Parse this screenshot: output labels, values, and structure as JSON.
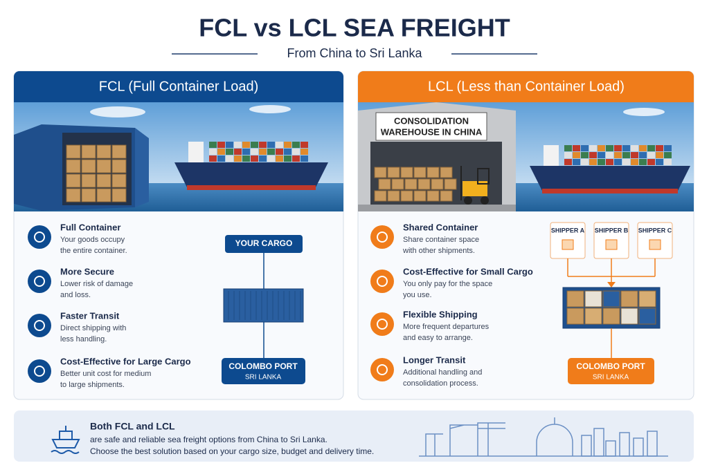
{
  "header": {
    "title": "FCL vs LCL SEA FREIGHT",
    "subtitle": "From China to Sri Lanka"
  },
  "fcl": {
    "heading": "FCL (Full Container Load)",
    "features": [
      {
        "title": "Full Container",
        "lines": [
          "Your goods occupy",
          "the entire container."
        ]
      },
      {
        "title": "More Secure",
        "lines": [
          "Lower risk of damage",
          "and loss."
        ]
      },
      {
        "title": "Faster Transit",
        "lines": [
          "Direct shipping with",
          "less handling."
        ]
      },
      {
        "title": "Cost-Effective for Large Cargo",
        "lines": [
          "Better unit cost for medium",
          "to large shipments."
        ]
      }
    ],
    "diagram": {
      "cargo": "YOUR CARGO",
      "port": "COLOMBO PORT",
      "port_sub": "SRI LANKA"
    }
  },
  "lcl": {
    "heading": "LCL (Less than Container Load)",
    "warehouse_sign": [
      "CONSOLIDATION",
      "WAREHOUSE IN CHINA"
    ],
    "features": [
      {
        "title": "Shared Container",
        "lines": [
          "Share container space",
          "with other shipments."
        ]
      },
      {
        "title": "Cost-Effective for Small Cargo",
        "lines": [
          "You only pay for the space",
          "you use."
        ]
      },
      {
        "title": "Flexible Shipping",
        "lines": [
          "More frequent departures",
          "and easy to arrange."
        ]
      },
      {
        "title": "Longer Transit",
        "lines": [
          "Additional handling and",
          "consolidation process."
        ]
      }
    ],
    "diagram": {
      "shippers": [
        "SHIPPER A",
        "SHIPPER B",
        "SHIPPER C"
      ],
      "port": "COLOMBO PORT",
      "port_sub": "SRI LANKA"
    }
  },
  "footer": {
    "title": "Both FCL and LCL",
    "lines": [
      "are safe and reliable sea freight options from China to Sri Lanka.",
      "Choose the best solution based on your cargo size, budget and delivery time."
    ]
  }
}
